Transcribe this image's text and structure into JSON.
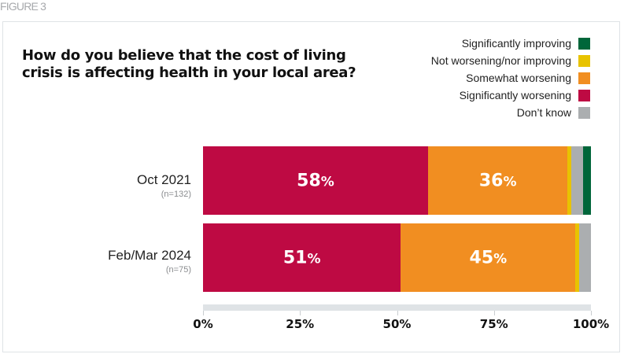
{
  "figure_label": "FIGURE 3",
  "chart_data": {
    "type": "bar",
    "orientation": "horizontal",
    "stacked": true,
    "title": "How do you believe that the cost of living crisis is affecting health in your local area?",
    "categories": [
      {
        "name": "Oct 2021",
        "n": "(n=132)"
      },
      {
        "name": "Feb/Mar 2024",
        "n": "(n=75)"
      }
    ],
    "series": [
      {
        "name": "Significantly worsening",
        "color": "#be0a43",
        "values": [
          58,
          51
        ],
        "labels": [
          "58%",
          "51%"
        ]
      },
      {
        "name": "Somewhat worsening",
        "color": "#f18e21",
        "values": [
          36,
          45
        ],
        "labels": [
          "36%",
          "45%"
        ]
      },
      {
        "name": "Not worsening/nor improving",
        "color": "#e8c300",
        "values": [
          1,
          1
        ],
        "labels": [
          "",
          ""
        ]
      },
      {
        "name": "Don't know",
        "color": "#abaeb0",
        "values": [
          3,
          3
        ],
        "labels": [
          "",
          ""
        ]
      },
      {
        "name": "Significantly improving",
        "color": "#00663a",
        "values": [
          2,
          0
        ],
        "labels": [
          "",
          ""
        ]
      }
    ],
    "legend_order": [
      "Significantly improving",
      "Not worsening/nor improving",
      "Somewhat worsening",
      "Significantly worsening",
      "Don’t know"
    ],
    "legend_colors": [
      "#00663a",
      "#e8c300",
      "#f18e21",
      "#be0a43",
      "#abaeb0"
    ],
    "legend_placement": "top-right",
    "xlim": [
      0,
      100
    ],
    "xticks": [
      "0%",
      "25%",
      "50%",
      "75%",
      "100%"
    ],
    "grid": false
  }
}
